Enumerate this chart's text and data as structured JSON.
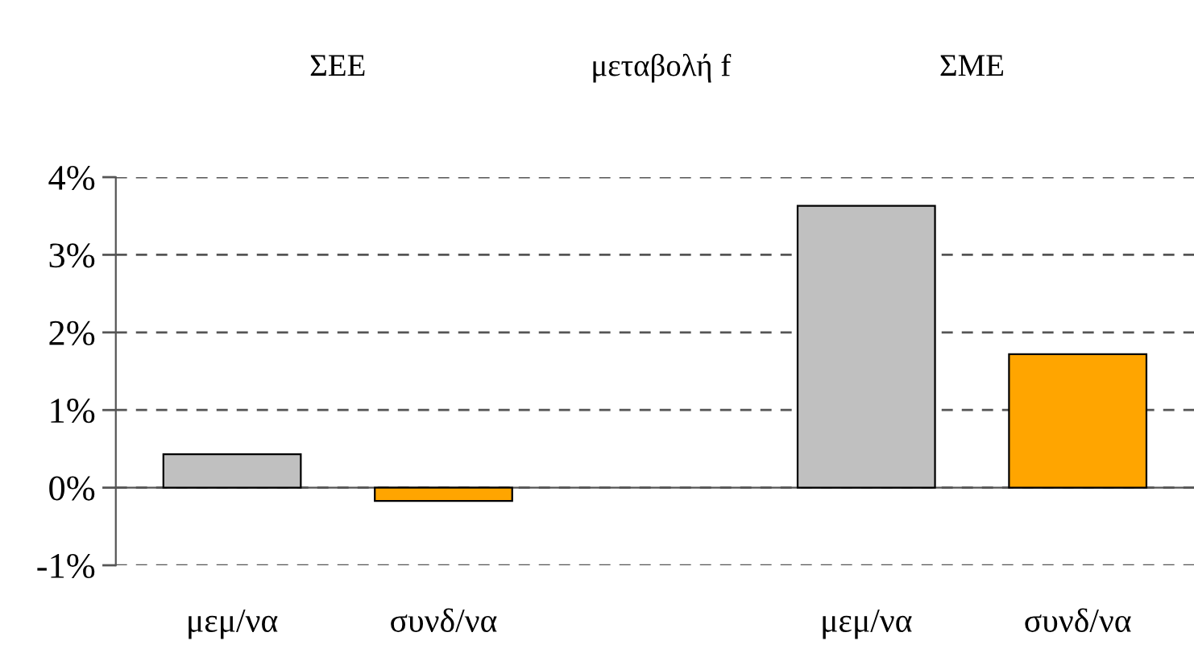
{
  "chart_data": {
    "type": "bar",
    "title": "μεταβολή f",
    "annotations": [
      "ΣΕΕ",
      "ΣΜΕ"
    ],
    "categories": [
      "μεμ/να",
      "συνδ/να",
      null,
      "μεμ/να",
      "συνδ/να"
    ],
    "values": [
      0.43,
      -0.17,
      null,
      3.63,
      1.72
    ],
    "colors": [
      "#c0c0c0",
      "#ffa500",
      null,
      "#c0c0c0",
      "#ffa500"
    ],
    "ylim": [
      -1,
      4
    ],
    "yticks": [
      {
        "value": -1,
        "label": "-1%"
      },
      {
        "value": 0,
        "label": "0%"
      },
      {
        "value": 1,
        "label": "1%"
      },
      {
        "value": 2,
        "label": "2%"
      },
      {
        "value": 3,
        "label": "3%"
      },
      {
        "value": 4,
        "label": "4%"
      }
    ],
    "grid": "y"
  }
}
